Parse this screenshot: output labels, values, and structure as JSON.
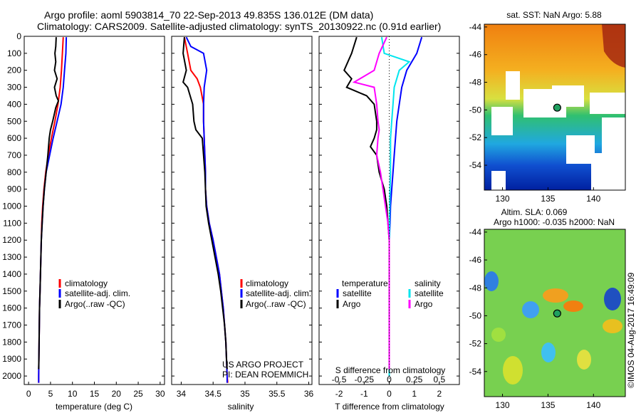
{
  "header": {
    "line1": "Argo profile: aoml 5903814_70 22-Sep-2013 49.835S 136.012E (DM data)",
    "line2": "Climatology: CARS2009. Satellite-adjusted climatology: synTS_20130922.nc (0.91d earlier)"
  },
  "credits": {
    "project": "US ARGO PROJECT",
    "pi": "PI: DEAN ROEMMICH",
    "stamp": "©IMOS 04-Aug-2017 16:49:09"
  },
  "colors": {
    "climatology": "#ff0000",
    "satellite": "#0000ff",
    "argo": "#000000",
    "sal_satellite": "#00e5ee",
    "sal_argo": "#ff00ff"
  },
  "chart_data": [
    {
      "type": "line",
      "name": "temperature",
      "xlabel": "temperature (deg C)",
      "ylabel": "pressure",
      "xlim": [
        -1,
        31
      ],
      "ylim": [
        2050,
        0
      ],
      "xticks": [
        0,
        5,
        10,
        15,
        20,
        25,
        30
      ],
      "yticks": [
        0,
        100,
        200,
        300,
        400,
        500,
        600,
        700,
        800,
        900,
        1000,
        1100,
        1200,
        1300,
        1400,
        1500,
        1600,
        1700,
        1800,
        1900,
        2000
      ],
      "legend": [
        "climatology",
        "satellite-adj. clim.",
        "Argo(..raw -QC)"
      ],
      "series": [
        {
          "name": "climatology",
          "color": "#ff0000",
          "points": [
            [
              7.9,
              5
            ],
            [
              7.7,
              100
            ],
            [
              7.5,
              200
            ],
            [
              7.2,
              300
            ],
            [
              6.7,
              400
            ],
            [
              6.0,
              500
            ],
            [
              5.2,
              600
            ],
            [
              4.5,
              700
            ],
            [
              3.9,
              800
            ],
            [
              3.5,
              900
            ],
            [
              3.2,
              1000
            ],
            [
              3.0,
              1100
            ],
            [
              2.9,
              1200
            ],
            [
              2.8,
              1300
            ],
            [
              2.7,
              1400
            ],
            [
              2.6,
              1500
            ],
            [
              2.5,
              1600
            ],
            [
              2.45,
              1700
            ],
            [
              2.4,
              1800
            ],
            [
              2.35,
              1900
            ],
            [
              2.3,
              2000
            ],
            [
              2.3,
              2040
            ]
          ]
        },
        {
          "name": "satellite",
          "color": "#0000ff",
          "points": [
            [
              8.6,
              5
            ],
            [
              8.5,
              100
            ],
            [
              8.2,
              200
            ],
            [
              7.9,
              300
            ],
            [
              7.4,
              400
            ],
            [
              6.5,
              500
            ],
            [
              5.6,
              600
            ],
            [
              4.8,
              700
            ],
            [
              4.0,
              800
            ],
            [
              3.6,
              900
            ],
            [
              3.3,
              1000
            ],
            [
              3.1,
              1100
            ],
            [
              2.9,
              1200
            ],
            [
              2.8,
              1300
            ],
            [
              2.7,
              1400
            ],
            [
              2.6,
              1500
            ],
            [
              2.5,
              1600
            ],
            [
              2.45,
              1700
            ],
            [
              2.4,
              1800
            ],
            [
              2.35,
              1900
            ],
            [
              2.3,
              2000
            ],
            [
              2.3,
              2040
            ]
          ]
        },
        {
          "name": "argo",
          "color": "#000000",
          "points": [
            [
              6.3,
              5
            ],
            [
              6.2,
              60
            ],
            [
              6.0,
              100
            ],
            [
              6.2,
              150
            ],
            [
              5.9,
              200
            ],
            [
              6.5,
              250
            ],
            [
              5.9,
              300
            ],
            [
              6.3,
              350
            ],
            [
              6.8,
              380
            ],
            [
              6.2,
              420
            ],
            [
              5.5,
              500
            ],
            [
              5.0,
              550
            ],
            [
              4.7,
              600
            ],
            [
              4.4,
              700
            ],
            [
              4.0,
              800
            ],
            [
              3.6,
              900
            ],
            [
              3.3,
              1000
            ],
            [
              3.1,
              1100
            ],
            [
              2.9,
              1200
            ],
            [
              2.8,
              1300
            ],
            [
              2.7,
              1400
            ],
            [
              2.6,
              1500
            ],
            [
              2.5,
              1600
            ],
            [
              2.45,
              1700
            ],
            [
              2.4,
              1800
            ],
            [
              2.35,
              1900
            ],
            [
              2.3,
              1960
            ]
          ]
        }
      ]
    },
    {
      "type": "line",
      "name": "salinity",
      "xlabel": "salinity",
      "xlim": [
        33.85,
        36.05
      ],
      "ylim": [
        2050,
        0
      ],
      "xticks": [
        34,
        34.5,
        35,
        35.5,
        36
      ],
      "legend": [
        "climatology",
        "satellite-adj. clim.",
        "Argo(..raw -QC)"
      ],
      "series": [
        {
          "name": "climatology",
          "color": "#ff0000",
          "points": [
            [
              34.05,
              5
            ],
            [
              34.1,
              100
            ],
            [
              34.15,
              200
            ],
            [
              34.25,
              250
            ],
            [
              34.3,
              300
            ],
            [
              34.35,
              400
            ],
            [
              34.35,
              500
            ],
            [
              34.36,
              600
            ],
            [
              34.37,
              700
            ],
            [
              34.38,
              800
            ],
            [
              34.38,
              900
            ],
            [
              34.4,
              1000
            ],
            [
              34.44,
              1100
            ],
            [
              34.5,
              1200
            ],
            [
              34.55,
              1300
            ],
            [
              34.6,
              1400
            ],
            [
              34.63,
              1500
            ],
            [
              34.66,
              1600
            ],
            [
              34.68,
              1700
            ],
            [
              34.7,
              1800
            ],
            [
              34.71,
              1900
            ],
            [
              34.72,
              2000
            ],
            [
              34.73,
              2040
            ]
          ]
        },
        {
          "name": "satellite",
          "color": "#0000ff",
          "points": [
            [
              34.08,
              5
            ],
            [
              34.15,
              60
            ],
            [
              34.35,
              100
            ],
            [
              34.4,
              200
            ],
            [
              34.36,
              300
            ],
            [
              34.35,
              400
            ],
            [
              34.35,
              500
            ],
            [
              34.36,
              600
            ],
            [
              34.37,
              700
            ],
            [
              34.38,
              800
            ],
            [
              34.38,
              900
            ],
            [
              34.4,
              1000
            ],
            [
              34.44,
              1100
            ],
            [
              34.5,
              1200
            ],
            [
              34.55,
              1300
            ],
            [
              34.6,
              1400
            ],
            [
              34.63,
              1500
            ],
            [
              34.66,
              1600
            ],
            [
              34.68,
              1700
            ],
            [
              34.7,
              1800
            ],
            [
              34.71,
              1900
            ],
            [
              34.72,
              2000
            ],
            [
              34.72,
              2040
            ]
          ]
        },
        {
          "name": "argo",
          "color": "#000000",
          "points": [
            [
              34.05,
              5
            ],
            [
              34.03,
              100
            ],
            [
              34.08,
              200
            ],
            [
              34.03,
              270
            ],
            [
              34.1,
              300
            ],
            [
              34.18,
              400
            ],
            [
              34.2,
              500
            ],
            [
              34.23,
              550
            ],
            [
              34.33,
              600
            ],
            [
              34.35,
              700
            ],
            [
              34.37,
              800
            ],
            [
              34.38,
              900
            ],
            [
              34.39,
              1000
            ],
            [
              34.43,
              1100
            ],
            [
              34.48,
              1200
            ],
            [
              34.53,
              1300
            ],
            [
              34.58,
              1400
            ],
            [
              34.62,
              1500
            ],
            [
              34.65,
              1600
            ],
            [
              34.68,
              1700
            ],
            [
              34.7,
              1800
            ],
            [
              34.71,
              1900
            ],
            [
              34.72,
              1960
            ]
          ]
        }
      ]
    },
    {
      "type": "line",
      "name": "differences",
      "xlabel_T": "T difference from climatology",
      "xlabel_S": "S difference from climatology",
      "xlim": [
        -2.8,
        2.8
      ],
      "ylim": [
        2050,
        0
      ],
      "xticks_T": [
        -2,
        -1,
        0,
        1,
        2
      ],
      "xticks_S_labels": [
        "-0.5",
        "-0.25",
        "0",
        "0.25",
        "0.5"
      ],
      "legend_temperature": {
        "title": "temperature",
        "items": [
          "satellite",
          "Argo"
        ]
      },
      "legend_salinity": {
        "title": "salinity",
        "items": [
          "satellite",
          "Argo"
        ]
      },
      "series": [
        {
          "name": "T satellite",
          "color": "#0000ff",
          "points": [
            [
              1.3,
              5
            ],
            [
              1.1,
              100
            ],
            [
              0.7,
              200
            ],
            [
              0.5,
              300
            ],
            [
              0.4,
              400
            ],
            [
              0.3,
              500
            ],
            [
              0.25,
              600
            ],
            [
              0.2,
              700
            ],
            [
              0.15,
              800
            ],
            [
              0.1,
              900
            ],
            [
              0.05,
              1000
            ],
            [
              0.03,
              1100
            ],
            [
              0.0,
              1200
            ],
            [
              0.0,
              1400
            ],
            [
              0.0,
              1600
            ],
            [
              0.0,
              1800
            ],
            [
              0.0,
              2000
            ]
          ]
        },
        {
          "name": "T argo",
          "color": "#000000",
          "points": [
            [
              -1.3,
              5
            ],
            [
              -1.5,
              100
            ],
            [
              -1.8,
              200
            ],
            [
              -1.5,
              250
            ],
            [
              -1.7,
              300
            ],
            [
              -0.9,
              350
            ],
            [
              -0.6,
              400
            ],
            [
              -0.5,
              500
            ],
            [
              -0.5,
              550
            ],
            [
              -0.6,
              600
            ],
            [
              -0.75,
              650
            ],
            [
              -0.5,
              700
            ],
            [
              -0.4,
              800
            ],
            [
              -0.2,
              900
            ],
            [
              -0.1,
              1000
            ],
            [
              -0.05,
              1100
            ],
            [
              0.0,
              1200
            ],
            [
              0.0,
              1400
            ],
            [
              0.0,
              1600
            ],
            [
              0.0,
              1800
            ],
            [
              0.0,
              1960
            ]
          ]
        },
        {
          "name": "S satellite",
          "color": "#00e5ee",
          "points": [
            [
              -0.3,
              5
            ],
            [
              -0.2,
              100
            ],
            [
              0.8,
              150
            ],
            [
              0.4,
              200
            ],
            [
              0.2,
              300
            ],
            [
              0.15,
              400
            ],
            [
              0.1,
              500
            ],
            [
              0.05,
              600
            ],
            [
              0.05,
              700
            ],
            [
              0.05,
              800
            ],
            [
              0.03,
              900
            ],
            [
              0.02,
              1000
            ],
            [
              0.0,
              1200
            ],
            [
              0.0,
              1400
            ],
            [
              0.0,
              1600
            ],
            [
              0.0,
              1800
            ],
            [
              0.0,
              2000
            ]
          ]
        },
        {
          "name": "S argo",
          "color": "#ff00ff",
          "points": [
            [
              -0.1,
              5
            ],
            [
              -0.4,
              100
            ],
            [
              -0.6,
              200
            ],
            [
              -1.4,
              270
            ],
            [
              -0.6,
              300
            ],
            [
              -0.5,
              400
            ],
            [
              -0.45,
              500
            ],
            [
              -0.4,
              550
            ],
            [
              -0.45,
              600
            ],
            [
              -0.5,
              700
            ],
            [
              -0.35,
              800
            ],
            [
              -0.25,
              900
            ],
            [
              -0.15,
              1000
            ],
            [
              -0.05,
              1100
            ],
            [
              0.0,
              1200
            ],
            [
              0.0,
              1400
            ],
            [
              0.0,
              1600
            ],
            [
              0.0,
              1800
            ],
            [
              0.0,
              1960
            ]
          ]
        }
      ]
    },
    {
      "type": "heatmap",
      "name": "sst-map",
      "title": "sat. SST: NaN Argo: 5.88",
      "xlim": [
        128,
        143.5
      ],
      "ylim": [
        -55.8,
        -43.8
      ],
      "xticks": [
        130,
        135,
        140
      ],
      "yticks": [
        -44,
        -46,
        -48,
        -50,
        -52,
        -54
      ],
      "marker": [
        136.012,
        -49.835
      ]
    },
    {
      "type": "heatmap",
      "name": "sla-map",
      "title1": "Altim. SLA: 0.069",
      "title2": "Argo h1000: -0.035 h2000: NaN",
      "xlim": [
        128,
        143.5
      ],
      "ylim": [
        -55.8,
        -43.8
      ],
      "xticks": [
        130,
        135,
        140
      ],
      "yticks": [
        -44,
        -46,
        -48,
        -50,
        -52,
        -54
      ],
      "marker": [
        136.012,
        -49.835
      ]
    }
  ]
}
